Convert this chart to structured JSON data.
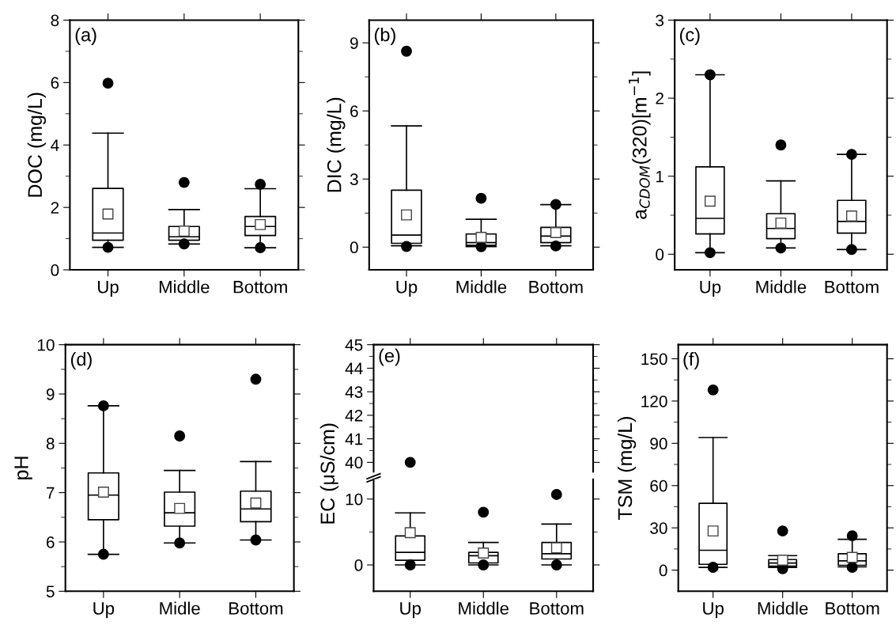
{
  "chart_data": [
    {
      "type": "box",
      "categories": [
        "Up",
        "Middle",
        "Bottom"
      ],
      "ylabel": "DOC (mg/L)",
      "annotations": [
        "(a)"
      ],
      "ylim": [
        0,
        8
      ],
      "yticks": [
        0,
        {
          "value": 1,
          "label": null
        },
        2,
        {
          "value": 3,
          "label": null
        },
        4,
        {
          "value": 5,
          "label": null
        },
        6,
        {
          "value": 7,
          "label": null
        },
        8
      ],
      "boxes": [
        {
          "low": 0.72,
          "q1": 0.95,
          "median": 1.18,
          "q3": 2.61,
          "high": 4.38,
          "mean": 1.79,
          "outliers": [
            5.98,
            0.72
          ]
        },
        {
          "low": 0.83,
          "q1": 0.95,
          "median": 1.06,
          "q3": 1.39,
          "high": 1.93,
          "mean": 1.24,
          "outliers": [
            2.8,
            0.83
          ]
        },
        {
          "low": 0.71,
          "q1": 1.1,
          "median": 1.39,
          "q3": 1.71,
          "high": 2.6,
          "mean": 1.45,
          "outliers": [
            2.74,
            0.71
          ]
        }
      ]
    },
    {
      "type": "box",
      "categories": [
        "Up",
        "Middle",
        "Bottom"
      ],
      "ylabel": "DIC (mg/L)",
      "annotations": [
        "(b)"
      ],
      "ylim": [
        -1,
        10
      ],
      "yticks": [
        0,
        {
          "value": 1.5,
          "label": null
        },
        3,
        {
          "value": 4.5,
          "label": null
        },
        6,
        {
          "value": 7.5,
          "label": null
        },
        9
      ],
      "boxes": [
        {
          "low": 0.06,
          "q1": 0.17,
          "median": 0.53,
          "q3": 2.51,
          "high": 5.34,
          "mean": 1.42,
          "outliers": [
            8.63,
            0.03
          ]
        },
        {
          "low": 0.02,
          "q1": 0.08,
          "median": 0.2,
          "q3": 0.58,
          "high": 1.23,
          "mean": 0.43,
          "outliers": [
            2.15,
            0.02
          ]
        },
        {
          "low": 0.06,
          "q1": 0.2,
          "median": 0.49,
          "q3": 0.87,
          "high": 1.87,
          "mean": 0.64,
          "outliers": [
            1.88,
            0.05
          ]
        }
      ]
    },
    {
      "type": "box",
      "categories": [
        "Up",
        "Middle",
        "Bottom"
      ],
      "ylabel": "a$_{CDOM}$(320)[m$^{−1}$]",
      "annotations": [
        "(c)"
      ],
      "ylim": [
        -0.2,
        3
      ],
      "yticks": [
        0,
        {
          "value": 0.5,
          "label": null
        },
        1,
        {
          "value": 1.5,
          "label": null
        },
        2,
        {
          "value": 2.5,
          "label": null
        },
        3
      ],
      "boxes": [
        {
          "low": 0.02,
          "q1": 0.26,
          "median": 0.46,
          "q3": 1.12,
          "high": 2.3,
          "mean": 0.68,
          "outliers": [
            2.3,
            0.02
          ]
        },
        {
          "low": 0.08,
          "q1": 0.2,
          "median": 0.33,
          "q3": 0.52,
          "high": 0.94,
          "mean": 0.4,
          "outliers": [
            1.4,
            0.08
          ]
        },
        {
          "low": 0.06,
          "q1": 0.27,
          "median": 0.42,
          "q3": 0.69,
          "high": 1.28,
          "mean": 0.49,
          "outliers": [
            1.28,
            0.06
          ]
        }
      ]
    },
    {
      "type": "box",
      "categories": [
        "Up",
        "Midle",
        "Bottom"
      ],
      "ylabel": "pH",
      "annotations": [
        "(d)"
      ],
      "ylim": [
        5,
        10
      ],
      "yticks": [
        5,
        {
          "value": 5.5,
          "label": null
        },
        6,
        {
          "value": 6.5,
          "label": null
        },
        7,
        {
          "value": 7.5,
          "label": null
        },
        8,
        {
          "value": 8.5,
          "label": null
        },
        9,
        {
          "value": 9.5,
          "label": null
        },
        10
      ],
      "boxes": [
        {
          "low": 5.75,
          "q1": 6.45,
          "median": 6.95,
          "q3": 7.4,
          "high": 8.76,
          "mean": 7.01,
          "outliers": [
            8.76,
            5.75
          ]
        },
        {
          "low": 5.98,
          "q1": 6.32,
          "median": 6.59,
          "q3": 7.01,
          "high": 7.45,
          "mean": 6.68,
          "outliers": [
            8.15,
            5.98
          ]
        },
        {
          "low": 6.04,
          "q1": 6.41,
          "median": 6.67,
          "q3": 7.03,
          "high": 7.63,
          "mean": 6.79,
          "outliers": [
            9.3,
            6.04
          ]
        }
      ]
    },
    {
      "type": "scatter",
      "categories": [
        null,
        null,
        null
      ],
      "annotations": [
        "(e)"
      ],
      "ylim": [
        39.6,
        45
      ],
      "yticks": [
        40,
        {
          "value": 40.5,
          "label": null
        },
        41,
        {
          "value": 41.5,
          "label": null
        },
        42,
        {
          "value": 42.5,
          "label": null
        },
        43,
        {
          "value": 43.5,
          "label": null
        },
        44,
        {
          "value": 44.5,
          "label": null
        },
        45
      ],
      "tick_labels": "y",
      "marker": "circle",
      "series": [
        {
          "color": "#000000",
          "values": [
            40,
            null,
            null
          ]
        }
      ]
    },
    {
      "type": "box",
      "categories": [
        "Up",
        "Middle",
        "Bottom"
      ],
      "ylabel": "EC (μS/cm)",
      "ylim": [
        -4,
        13
      ],
      "yticks": [
        0,
        {
          "value": 5,
          "label": null
        },
        10
      ],
      "boxes": [
        {
          "low": 0,
          "q1": 0.7,
          "median": 1.9,
          "q3": 4.4,
          "high": 7.9,
          "mean": 4.9,
          "outliers": [
            0
          ]
        },
        {
          "low": 0,
          "q1": 0.3,
          "median": 1.4,
          "q3": 1.9,
          "high": 3.4,
          "mean": 1.8,
          "outliers": [
            8.0,
            0
          ]
        },
        {
          "low": 0,
          "q1": 0.9,
          "median": 1.7,
          "q3": 3.4,
          "high": 6.2,
          "mean": 2.6,
          "outliers": [
            10.7,
            0
          ]
        }
      ]
    },
    {
      "type": "box",
      "categories": [
        "Up",
        "Middle",
        "Bottom"
      ],
      "ylabel": "TSM (mg/L)",
      "annotations": [
        "(f)"
      ],
      "ylim": [
        -15,
        160
      ],
      "yticks": [
        0,
        {
          "value": 15,
          "label": null
        },
        30,
        {
          "value": 45,
          "label": null
        },
        60,
        {
          "value": 75,
          "label": null
        },
        90,
        {
          "value": 105,
          "label": null
        },
        120,
        {
          "value": 135,
          "label": null
        },
        150
      ],
      "boxes": [
        {
          "low": 1.9,
          "q1": 4.1,
          "median": 14.1,
          "q3": 47.4,
          "high": 94.1,
          "mean": 27.8,
          "outliers": [
            127.9,
            2
          ]
        },
        {
          "low": 1.9,
          "q1": 2.8,
          "median": 5,
          "q3": 7.5,
          "high": 10.3,
          "mean": 7.1,
          "outliers": [
            27.8,
            1
          ]
        },
        {
          "low": 2.3,
          "q1": 3.4,
          "median": 6.6,
          "q3": 11.6,
          "high": 21.9,
          "mean": 9,
          "outliers": [
            24.4,
            2
          ]
        }
      ]
    }
  ]
}
